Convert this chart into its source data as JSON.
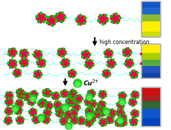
{
  "bg_color": "#ffffff",
  "chain_color": "#7fffee",
  "pill_red": "#ee0044",
  "pill_green": "#00bb00",
  "cu_outer": "#22cc22",
  "cu_inner": "#55ff55",
  "arrow_color": "#111111",
  "text_high_conc": "high concentration",
  "text_cu": "Cu",
  "text_cu_super": "2+",
  "label_fontsize": 5.5,
  "fig_w": 2.49,
  "fig_h": 1.89,
  "dpi": 100
}
